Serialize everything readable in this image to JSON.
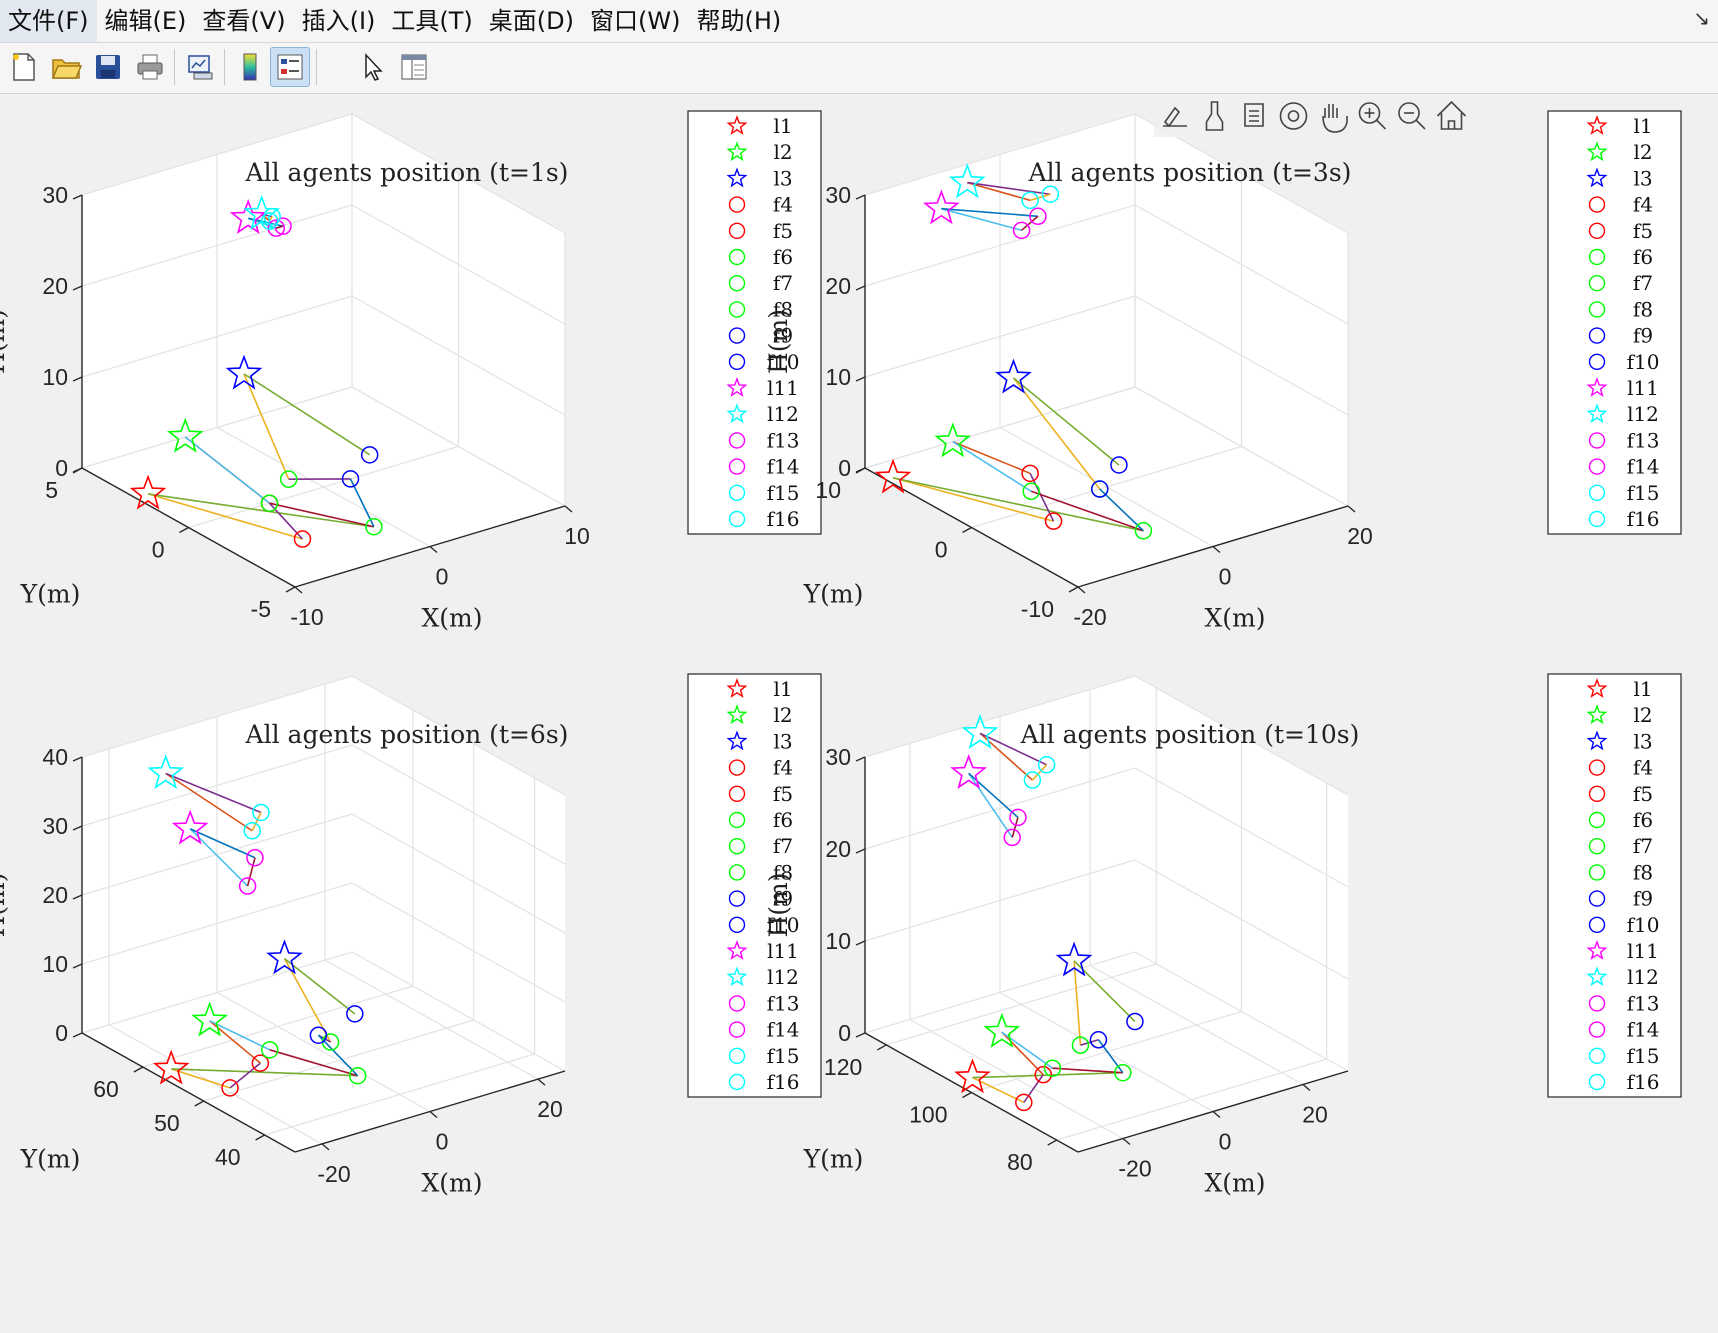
{
  "menubar": {
    "items": [
      "文件(F)",
      "编辑(E)",
      "查看(V)",
      "插入(I)",
      "工具(T)",
      "桌面(D)",
      "窗口(W)",
      "帮助(H)"
    ],
    "corner_icon": "dock-arrow-icon"
  },
  "toolbar": {
    "buttons": [
      "new-figure-icon",
      "open-file-icon",
      "save-icon",
      "print-icon",
      "link-plot-icon",
      "colorbar-icon",
      "legend-icon",
      "edit-plot-pointer-icon",
      "property-inspector-icon"
    ],
    "active": "legend-icon"
  },
  "axes_toolbar": {
    "buttons": [
      "export-icon",
      "brush-icon",
      "data-tips-icon",
      "rotate-3d-icon",
      "pan-hand-icon",
      "zoom-in-icon",
      "zoom-out-icon",
      "restore-view-home-icon"
    ]
  },
  "chart_data": [
    {
      "type": "scatter3d",
      "title": "All agents position (t=1s)",
      "xlabel": "X(m)",
      "ylabel": "Y(m)",
      "zlabel": "H(m)",
      "xlim": [
        -10,
        10
      ],
      "ylim": [
        -5,
        5
      ],
      "zlim": [
        0,
        30
      ],
      "xticks": [
        -10,
        0,
        10
      ],
      "yticks": [
        -5,
        0,
        5
      ],
      "zticks": [
        0,
        10,
        20,
        30
      ],
      "grid": true,
      "legend_location": "outside-right",
      "agents": [
        {
          "name": "l1",
          "x": -9.05,
          "y": 2.5,
          "z": 0
        },
        {
          "name": "l2",
          "x": -2.35,
          "y": 5,
          "z": 0
        },
        {
          "name": "l3",
          "x": 2,
          "y": 5,
          "z": 5
        },
        {
          "name": "f4",
          "x": -5.5,
          "y": -2.5,
          "z": 0
        },
        {
          "name": "f5",
          "x": -4,
          "y": 0,
          "z": 0
        },
        {
          "name": "f6",
          "x": -1,
          "y": -3,
          "z": 0
        },
        {
          "name": "f7",
          "x": -4,
          "y": 0,
          "z": 0
        },
        {
          "name": "f8",
          "x": -1,
          "y": 1,
          "z": 0
        },
        {
          "name": "f9",
          "x": 2,
          "y": 0,
          "z": 0
        },
        {
          "name": "f10",
          "x": 5,
          "y": 1,
          "z": 0
        },
        {
          "name": "l11",
          "x": -4,
          "y": 1,
          "z": 30
        },
        {
          "name": "l12",
          "x": -3,
          "y": 1,
          "z": 30
        },
        {
          "name": "f13",
          "x": -3.5,
          "y": 0,
          "z": 30
        },
        {
          "name": "f14",
          "x": -3,
          "y": 0,
          "z": 30
        },
        {
          "name": "f15",
          "x": -3.2,
          "y": 0.5,
          "z": 30
        },
        {
          "name": "f16",
          "x": -2.7,
          "y": 0.7,
          "z": 30
        }
      ]
    },
    {
      "type": "scatter3d",
      "title": "All agents position (t=3s)",
      "xlabel": "X(m)",
      "ylabel": "Y(m)",
      "zlabel": "H(m)",
      "xlim": [
        -20,
        20
      ],
      "ylim": [
        -10,
        10
      ],
      "zlim": [
        0,
        30
      ],
      "xticks": [
        -20,
        0,
        20
      ],
      "yticks": [
        -10,
        0,
        10
      ],
      "zticks": [
        0,
        10,
        20,
        30
      ],
      "grid": true,
      "legend_location": "outside-right",
      "agents": [
        {
          "name": "l1",
          "x": -19,
          "y": 8,
          "z": 0
        },
        {
          "name": "l2",
          "x": -7,
          "y": 10,
          "z": 0
        },
        {
          "name": "l3",
          "x": 2,
          "y": 10,
          "z": 5
        },
        {
          "name": "f4",
          "x": -11,
          "y": -2,
          "z": 0
        },
        {
          "name": "f5",
          "x": -5,
          "y": 4,
          "z": 0
        },
        {
          "name": "f6",
          "x": -4,
          "y": -6,
          "z": 0
        },
        {
          "name": "f7",
          "x": -8,
          "y": 2,
          "z": 0
        },
        {
          "name": "f8",
          "x": -1,
          "y": 0,
          "z": 0
        },
        {
          "name": "f9",
          "x": -1,
          "y": 0,
          "z": 0
        },
        {
          "name": "f10",
          "x": 5,
          "y": 2,
          "z": 0
        },
        {
          "name": "l11",
          "x": -15,
          "y": 6,
          "z": 30
        },
        {
          "name": "l12",
          "x": -8,
          "y": 8,
          "z": 30
        },
        {
          "name": "f13",
          "x": -11,
          "y": 1,
          "z": 30
        },
        {
          "name": "f14",
          "x": -7,
          "y": 2,
          "z": 30
        },
        {
          "name": "f15",
          "x": -5,
          "y": 4,
          "z": 30
        },
        {
          "name": "f16",
          "x": -2,
          "y": 4,
          "z": 30
        }
      ]
    },
    {
      "type": "scatter3d",
      "title": "All agents position (t=6s)",
      "xlabel": "X(m)",
      "ylabel": "Y(m)",
      "zlabel": "H(m)",
      "xlim": [
        -25,
        25
      ],
      "ylim": [
        35,
        70
      ],
      "zlim": [
        0,
        40
      ],
      "xticks": [
        -20,
        0,
        20
      ],
      "yticks": [
        40,
        50,
        60
      ],
      "zticks": [
        0,
        10,
        20,
        30,
        40
      ],
      "grid": true,
      "legend_location": "outside-right",
      "agents": [
        {
          "name": "l1",
          "x": -22,
          "y": 58,
          "z": 0
        },
        {
          "name": "l2",
          "x": -7,
          "y": 65,
          "z": 0
        },
        {
          "name": "l3",
          "x": 8,
          "y": 66,
          "z": 5
        },
        {
          "name": "f4",
          "x": -19,
          "y": 51,
          "z": 0
        },
        {
          "name": "f5",
          "x": -10,
          "y": 54,
          "z": 0
        },
        {
          "name": "f6",
          "x": -1,
          "y": 46,
          "z": 0
        },
        {
          "name": "f7",
          "x": -6,
          "y": 56,
          "z": 0
        },
        {
          "name": "f8",
          "x": 3,
          "y": 54,
          "z": 0
        },
        {
          "name": "f9",
          "x": 3,
          "y": 56,
          "z": 0
        },
        {
          "name": "f10",
          "x": 12,
          "y": 58,
          "z": 0
        },
        {
          "name": "l11",
          "x": -23,
          "y": 54,
          "z": 37
        },
        {
          "name": "l12",
          "x": -14,
          "y": 66,
          "z": 37
        },
        {
          "name": "f13",
          "x": -18,
          "y": 49,
          "z": 30
        },
        {
          "name": "f14",
          "x": -11,
          "y": 54,
          "z": 30
        },
        {
          "name": "f15",
          "x": -7,
          "y": 58,
          "z": 31
        },
        {
          "name": "f16",
          "x": -2,
          "y": 61,
          "z": 31
        }
      ]
    },
    {
      "type": "scatter3d",
      "title": "All agents position (t=10s)",
      "xlabel": "X(m)",
      "ylabel": "Y(m)",
      "zlabel": "H(m)",
      "xlim": [
        -30,
        30
      ],
      "ylim": [
        75,
        125
      ],
      "zlim": [
        0,
        30
      ],
      "xticks": [
        -20,
        0,
        20
      ],
      "yticks": [
        80,
        100,
        120
      ],
      "zticks": [
        0,
        10,
        20,
        30
      ],
      "grid": true,
      "legend_location": "outside-right",
      "agents": [
        {
          "name": "l1",
          "x": -26,
          "y": 104,
          "z": 0
        },
        {
          "name": "l2",
          "x": -10,
          "y": 114,
          "z": 0
        },
        {
          "name": "l3",
          "x": 7,
          "y": 115,
          "z": 5
        },
        {
          "name": "f4",
          "x": -25,
          "y": 93,
          "z": 0
        },
        {
          "name": "f5",
          "x": -15,
          "y": 99,
          "z": 0
        },
        {
          "name": "f6",
          "x": -3,
          "y": 93,
          "z": 0
        },
        {
          "name": "f7",
          "x": -12,
          "y": 100,
          "z": 0
        },
        {
          "name": "f8",
          "x": -2,
          "y": 104,
          "z": 0
        },
        {
          "name": "f9",
          "x": 2,
          "y": 104,
          "z": 0
        },
        {
          "name": "f10",
          "x": 12,
          "y": 106,
          "z": 0
        },
        {
          "name": "l11",
          "x": -24,
          "y": 107,
          "z": 32
        },
        {
          "name": "l12",
          "x": -12,
          "y": 117,
          "z": 32
        },
        {
          "name": "f13",
          "x": -20,
          "y": 101,
          "z": 26
        },
        {
          "name": "f14",
          "x": -14,
          "y": 106,
          "z": 26
        },
        {
          "name": "f15",
          "x": -7,
          "y": 110,
          "z": 28
        },
        {
          "name": "f16",
          "x": -1,
          "y": 113,
          "z": 28
        }
      ]
    }
  ],
  "legend_entries": [
    {
      "label": "l1",
      "marker": "star",
      "color": "#ff0000"
    },
    {
      "label": "l2",
      "marker": "star",
      "color": "#00ff00"
    },
    {
      "label": "l3",
      "marker": "star",
      "color": "#0000ff"
    },
    {
      "label": "f4",
      "marker": "circle",
      "color": "#ff0000"
    },
    {
      "label": "f5",
      "marker": "circle",
      "color": "#ff0000"
    },
    {
      "label": "f6",
      "marker": "circle",
      "color": "#00ff00"
    },
    {
      "label": "f7",
      "marker": "circle",
      "color": "#00ff00"
    },
    {
      "label": "f8",
      "marker": "circle",
      "color": "#00ff00"
    },
    {
      "label": "f9",
      "marker": "circle",
      "color": "#0000ff"
    },
    {
      "label": "f10",
      "marker": "circle",
      "color": "#0000ff"
    },
    {
      "label": "l11",
      "marker": "star",
      "color": "#ff00ff"
    },
    {
      "label": "l12",
      "marker": "star",
      "color": "#00ffff"
    },
    {
      "label": "f13",
      "marker": "circle",
      "color": "#ff00ff"
    },
    {
      "label": "f14",
      "marker": "circle",
      "color": "#ff00ff"
    },
    {
      "label": "f15",
      "marker": "circle",
      "color": "#00ffff"
    },
    {
      "label": "f16",
      "marker": "circle",
      "color": "#00ffff"
    }
  ],
  "link_colors": [
    "#0072bd",
    "#d95319",
    "#edb120",
    "#7e2f8e",
    "#77ac30",
    "#4dbeee",
    "#a2142f"
  ]
}
